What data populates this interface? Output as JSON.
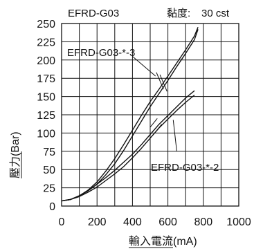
{
  "chart_data": {
    "type": "line",
    "title": "EFRD-G03",
    "viscosity_label": "黏度:",
    "viscosity_value": "30 cst",
    "xlabel": "輸入電流(mA)",
    "ylabel": "壓力(Bar)",
    "xlim": [
      0,
      1000
    ],
    "ylim": [
      0,
      250
    ],
    "x_ticks": [
      "0",
      "200",
      "400",
      "600",
      "800",
      "1000"
    ],
    "y_ticks": [
      "0",
      "25",
      "50",
      "75",
      "100",
      "125",
      "150",
      "175",
      "200",
      "225",
      "250"
    ],
    "grid": true,
    "series": [
      {
        "name": "EFRD-G03-*-3",
        "curves": [
          {
            "x": [
              0,
              50,
              100,
              150,
              200,
              250,
              300,
              350,
              400,
              450,
              500,
              550,
              600,
              650,
              700,
              750,
              770
            ],
            "y": [
              7,
              9,
              14,
              22,
              33,
              48,
              65,
              84,
              104,
              124,
              143,
              160,
              178,
              196,
              214,
              233,
              245
            ]
          },
          {
            "x": [
              0,
              50,
              100,
              150,
              200,
              250,
              300,
              350,
              400,
              450,
              500,
              550,
              600,
              650,
              700,
              750,
              770
            ],
            "y": [
              7,
              9,
              14,
              21,
              30,
              43,
              58,
              76,
              96,
              116,
              136,
              154,
              172,
              191,
              209,
              228,
              242
            ]
          }
        ]
      },
      {
        "name": "EFRD-G03-*-2",
        "curves": [
          {
            "x": [
              0,
              50,
              100,
              150,
              200,
              250,
              300,
              350,
              400,
              450,
              500,
              550,
              600,
              650,
              700,
              750
            ],
            "y": [
              7,
              9,
              14,
              21,
              30,
              39,
              49,
              60,
              71,
              84,
              98,
              112,
              124,
              136,
              148,
              158
            ]
          },
          {
            "x": [
              0,
              50,
              100,
              150,
              200,
              250,
              300,
              350,
              400,
              450,
              500,
              550,
              600,
              650,
              700,
              750
            ],
            "y": [
              7,
              9,
              13,
              19,
              26,
              35,
              44,
              54,
              66,
              79,
              93,
              107,
              119,
              131,
              142,
              152
            ]
          }
        ]
      }
    ]
  }
}
